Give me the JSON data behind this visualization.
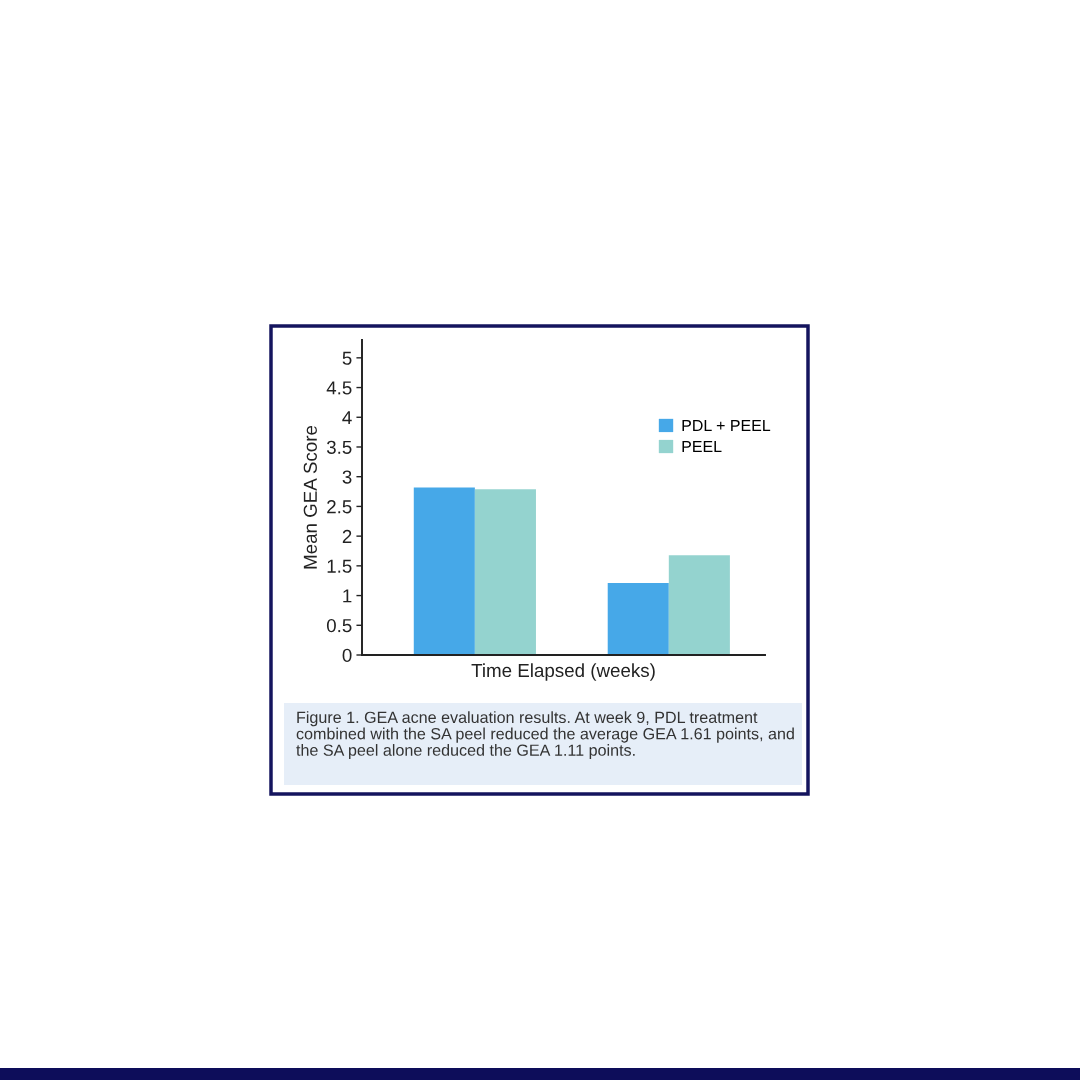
{
  "chart_data": {
    "type": "bar",
    "xlabel": "Time Elapsed (weeks)",
    "ylabel": "Mean GEA Score",
    "categories": [
      null,
      null
    ],
    "series": [
      {
        "name": "PDL + PEEL",
        "color": "#46a8e8",
        "values": [
          2.82,
          1.21
        ]
      },
      {
        "name": "PEEL",
        "color": "#94d3cf",
        "values": [
          2.79,
          1.68
        ]
      }
    ],
    "ylim": [
      0,
      5.3
    ],
    "yticks": [
      0,
      0.5,
      1,
      1.5,
      2,
      2.5,
      3,
      3.5,
      4,
      4.5,
      5
    ],
    "grid": false,
    "legend": "top right",
    "tick_labels": "y",
    "annotations": [
      "Figure 1. GEA acne evaluation results. At week 9, PDL treatment combined with the SA peel reduced the average GEA 1.61 points, and the SA peel alone reduced the GEA 1.11 points."
    ]
  }
}
